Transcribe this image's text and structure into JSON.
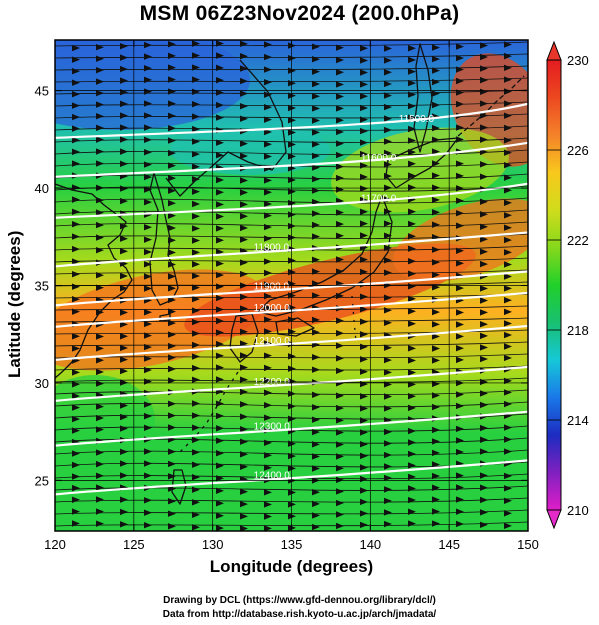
{
  "title": "MSM 06Z23Nov2024 (200.0hPa)",
  "xlabel": "Longitude (degrees)",
  "ylabel": "Latitude  (degrees)",
  "credits": {
    "line1": "Drawing by DCL (https://www.gfd-dennou.org/library/dcl/)",
    "line2": "Data from http://database.rish.kyoto-u.ac.jp/arch/jmadata/"
  },
  "chart_data": {
    "type": "heatmap",
    "x_range": [
      120,
      150
    ],
    "y_range": [
      22.4,
      47.6
    ],
    "x_ticks": [
      "120",
      "125",
      "130",
      "135",
      "140",
      "145",
      "150"
    ],
    "y_ticks": [
      "25",
      "30",
      "35",
      "40",
      "45"
    ],
    "colorbar": {
      "range": [
        210,
        230
      ],
      "tick_labels": [
        "210",
        "214",
        "218",
        "222",
        "226",
        "230"
      ],
      "colors": [
        "#e01ec8",
        "#8020c0",
        "#1c2cc0",
        "#1a78e8",
        "#16c8d8",
        "#18c070",
        "#22d02a",
        "#86d81c",
        "#d0dc1c",
        "#f8c81c",
        "#f4822a",
        "#ec4820",
        "#e41c20"
      ]
    },
    "temperature_field_colors": {
      "cold": "#2a64da",
      "cool": "#20c0b0",
      "mid": "#28d040",
      "warm": "#a6da1c",
      "warmer": "#ffb020",
      "hot": "#f4701e",
      "hottest": "#e84a1c"
    },
    "height_contours": [
      {
        "label": "11500.0",
        "lon": 141.8,
        "lat": 43.4
      },
      {
        "label": "11600.0",
        "lon": 139.4,
        "lat": 41.4
      },
      {
        "label": "11700.0",
        "lon": 139.4,
        "lat": 39.3
      },
      {
        "label": "11800.0",
        "lon": 132.6,
        "lat": 36.8
      },
      {
        "label": "11900.0",
        "lon": 132.6,
        "lat": 34.8
      },
      {
        "label": "12000.0",
        "lon": 132.6,
        "lat": 33.7
      },
      {
        "label": "12100.0",
        "lon": 132.6,
        "lat": 32.0
      },
      {
        "label": "12200.0",
        "lon": 132.6,
        "lat": 29.9
      },
      {
        "label": "12300.0",
        "lon": 132.6,
        "lat": 27.6
      },
      {
        "label": "12400.0",
        "lon": 132.6,
        "lat": 25.1
      }
    ],
    "wind": "westerly streamlines (arrows), strongest near 33-37N"
  }
}
